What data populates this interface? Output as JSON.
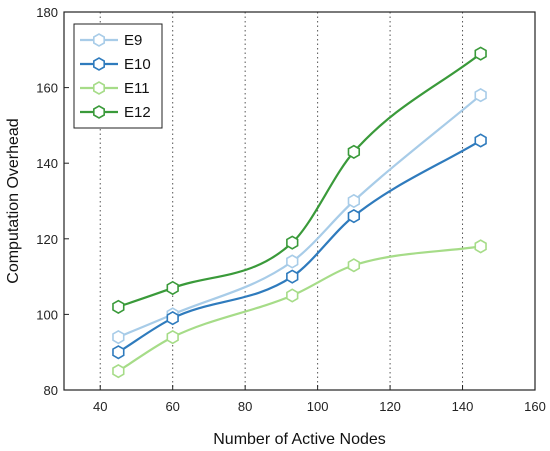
{
  "chart_data": {
    "type": "line",
    "title": "",
    "xlabel": "Number of Active Nodes",
    "ylabel": "Computation Overhead",
    "xlim": [
      30,
      160
    ],
    "ylim": [
      80,
      180
    ],
    "x_ticks": [
      40,
      60,
      80,
      100,
      120,
      140,
      160
    ],
    "y_ticks": [
      80,
      100,
      120,
      140,
      160,
      180
    ],
    "x_tick_labels": [
      "40",
      "60",
      "80",
      "100",
      "120",
      "140",
      "160"
    ],
    "y_tick_labels": [
      "80",
      "100",
      "120",
      "140",
      "160",
      "180"
    ],
    "vertical_grid": true,
    "grid_style": "dotted",
    "horizontal_grid": false,
    "legend_position": "top-left",
    "marker": "hexagon-open",
    "x": [
      45,
      60,
      93,
      110,
      145
    ],
    "series": [
      {
        "name": "E9",
        "color": "#a8cce8",
        "values": [
          94,
          100,
          114,
          130,
          158
        ]
      },
      {
        "name": "E10",
        "color": "#2f7bbd",
        "values": [
          90,
          99,
          110,
          126,
          146
        ]
      },
      {
        "name": "E11",
        "color": "#a6dc88",
        "values": [
          85,
          94,
          105,
          113,
          118
        ]
      },
      {
        "name": "E12",
        "color": "#3a9a3a",
        "values": [
          102,
          107,
          119,
          143,
          169
        ]
      }
    ]
  }
}
